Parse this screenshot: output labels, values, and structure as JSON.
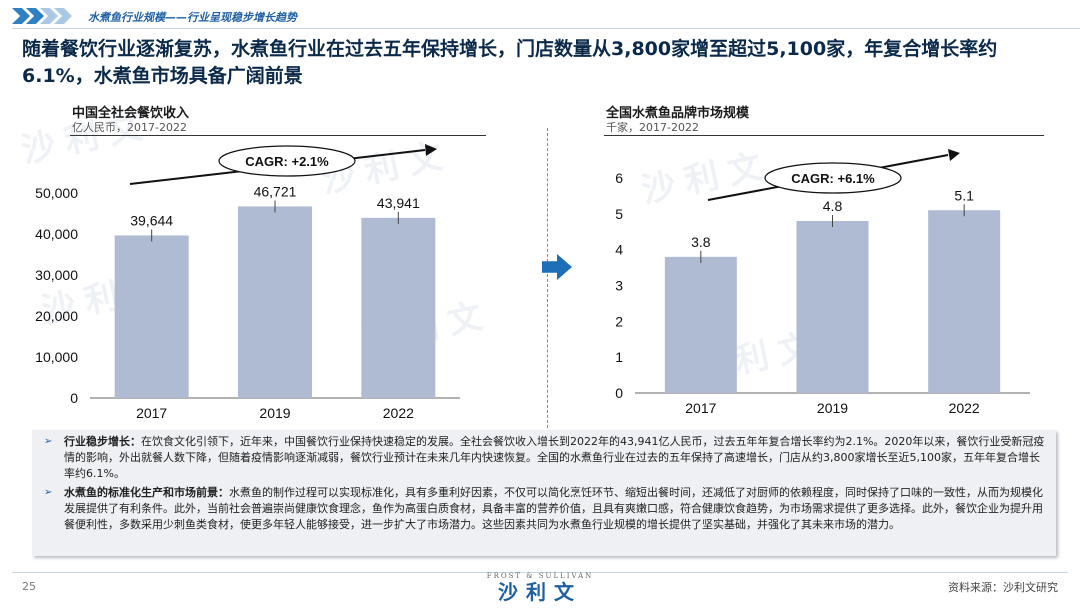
{
  "header": {
    "section_title": "水煮鱼行业规模——行业呈现稳步增长趋势"
  },
  "headline": "随着餐饮行业逐渐复苏，水煮鱼行业在过去五年保持增长，门店数量从3,800家增至超过5,100家，年复合增长率约6.1%，水煮鱼市场具备广阔前景",
  "watermark": "沙利文",
  "left_panel": {
    "title": "中国全社会餐饮收入",
    "subtitle": "亿人民币，2017-2022",
    "cagr_label": "CAGR: +2.1%"
  },
  "right_panel": {
    "title": "全国水煮鱼品牌市场规模",
    "subtitle": "千家，2017-2022",
    "cagr_label": "CAGR: +6.1%"
  },
  "chart_data": [
    {
      "type": "bar",
      "title": "中国全社会餐饮收入",
      "subtitle": "亿人民币，2017-2022",
      "categories": [
        "2017",
        "2019",
        "2022"
      ],
      "values": [
        39644,
        46721,
        43941
      ],
      "value_labels": [
        "39,644",
        "46,721",
        "43,941"
      ],
      "ylim": [
        0,
        50000
      ],
      "yticks": [
        0,
        10000,
        20000,
        30000,
        40000,
        50000
      ],
      "ytick_labels": [
        "0",
        "10,000",
        "20,000",
        "30,000",
        "40,000",
        "50,000"
      ],
      "annotation": "CAGR: +2.1%",
      "bar_color": "#aebbd2",
      "grid": false
    },
    {
      "type": "bar",
      "title": "全国水煮鱼品牌市场规模",
      "subtitle": "千家，2017-2022",
      "categories": [
        "2017",
        "2019",
        "2022"
      ],
      "values": [
        3.8,
        4.8,
        5.1
      ],
      "value_labels": [
        "3.8",
        "4.8",
        "5.1"
      ],
      "ylim": [
        0,
        6
      ],
      "yticks": [
        0,
        1,
        2,
        3,
        4,
        5,
        6
      ],
      "ytick_labels": [
        "0",
        "1",
        "2",
        "3",
        "4",
        "5",
        "6"
      ],
      "annotation": "CAGR: +6.1%",
      "bar_color": "#aebbd2",
      "grid": false
    }
  ],
  "notes": [
    {
      "lead": "行业稳步增长：",
      "text": "在饮食文化引领下，近年来，中国餐饮行业保持快速稳定的发展。全社会餐饮收入增长到2022年的43,941亿人民币，过去五年年复合增长率约为2.1%。2020年以来，餐饮行业受新冠疫情的影响，外出就餐人数下降，但随着疫情影响逐渐减弱，餐饮行业预计在未来几年内快速恢复。全国的水煮鱼行业在过去的五年保持了高速增长，门店从约3,800家增长至近5,100家，五年年复合增长率约6.1%。"
    },
    {
      "lead": "水煮鱼的标准化生产和市场前景：",
      "text": "水煮鱼的制作过程可以实现标准化，具有多重利好因素，不仅可以简化烹饪环节、缩短出餐时间，还减低了对厨师的依赖程度，同时保持了口味的一致性，从而为规模化发展提供了有利条件。此外，当前社会普遍崇尚健康饮食理念，鱼作为高蛋白质食材，具备丰富的营养价值，且具有爽嫩口感，符合健康饮食趋势，为市场需求提供了更多选择。此外，餐饮企业为提升用餐便利性，多数采用少刺鱼类食材，使更多年轻人能够接受，进一步扩大了市场潜力。这些因素共同为水煮鱼行业规模的增长提供了坚实基础，并强化了其未来市场的潜力。"
    }
  ],
  "footer": {
    "page_number": "25",
    "logo_top": "FROST & SULLIVAN",
    "logo_main": "沙利文",
    "source": "资料来源：沙利文研究"
  }
}
